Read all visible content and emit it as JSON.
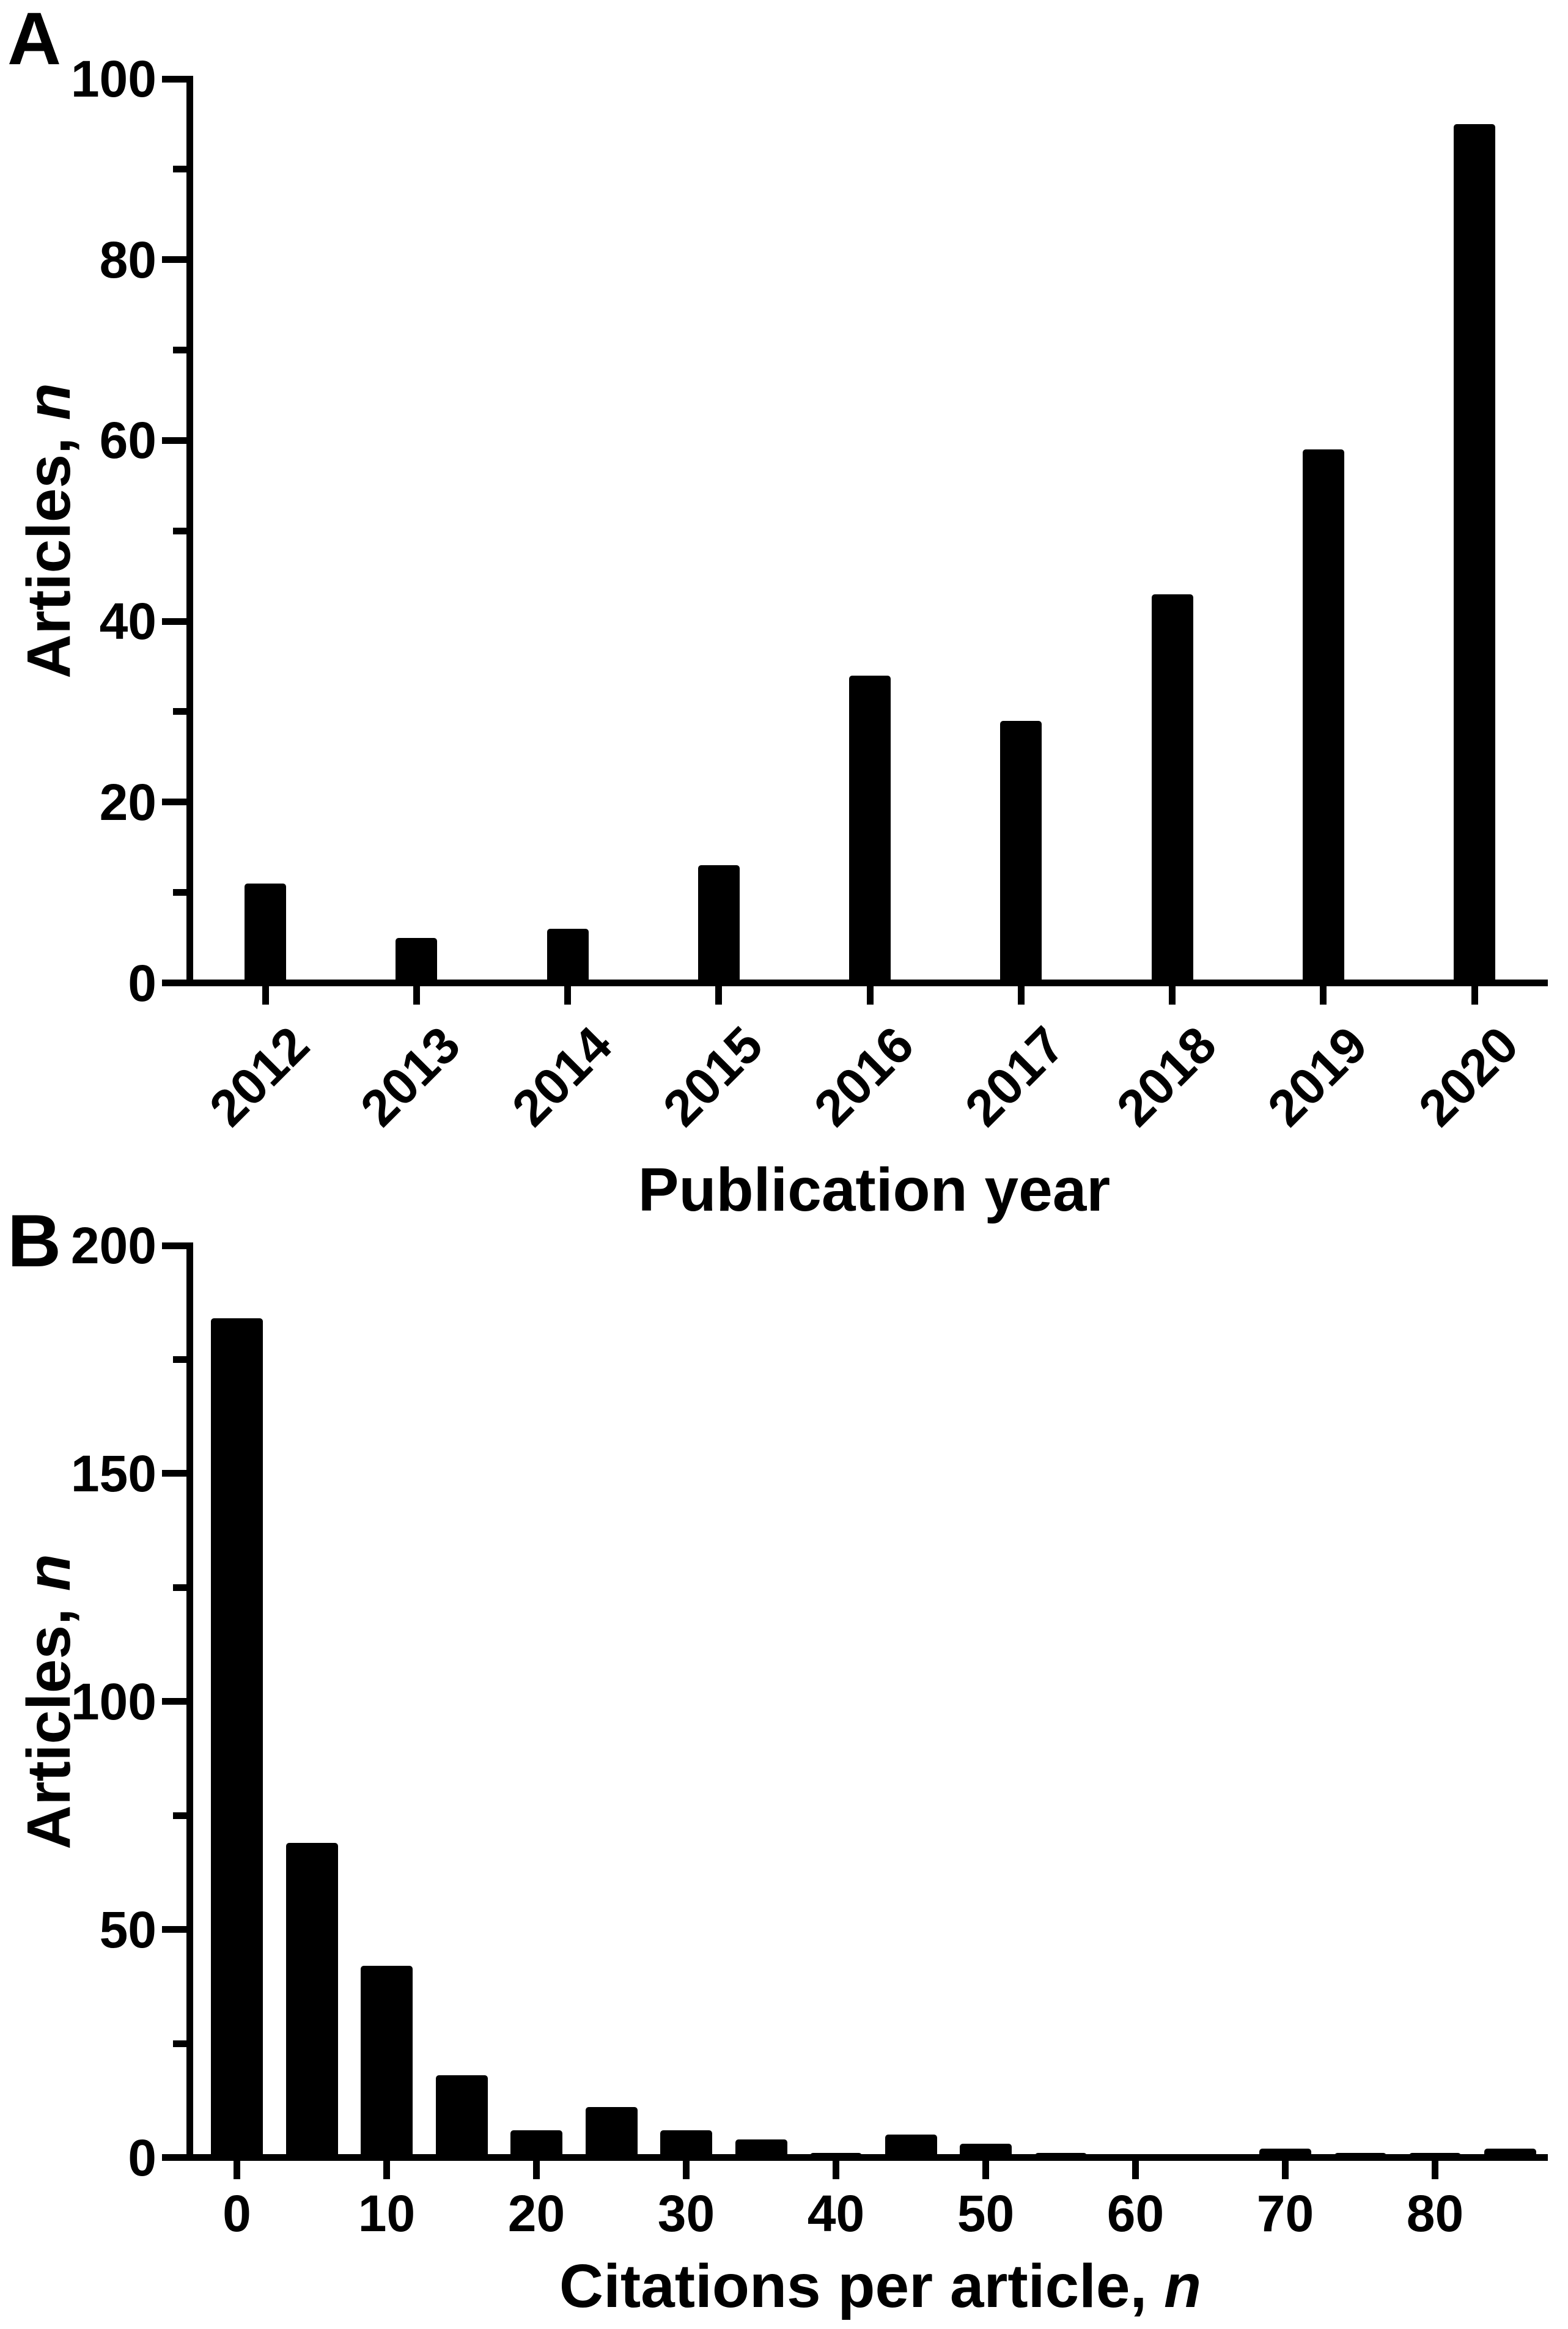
{
  "page": {
    "background_color": "#ffffff",
    "ink_color": "#000000"
  },
  "chart_data": [
    {
      "type": "bar",
      "panel_letter": "A",
      "title": "",
      "categories": [
        "2012",
        "2013",
        "2014",
        "2015",
        "2016",
        "2017",
        "2018",
        "2019",
        "2020"
      ],
      "values": [
        11,
        5,
        6,
        13,
        34,
        29,
        43,
        59,
        95
      ],
      "xlabel": {
        "text": "Publication year",
        "suffix_italic": ""
      },
      "ylabel": {
        "text": "Articles, ",
        "suffix_italic": "n"
      },
      "ylim": [
        0,
        100
      ],
      "y_major_ticks": [
        0,
        20,
        40,
        60,
        80,
        100
      ],
      "y_minor_ticks": [
        10,
        30,
        50,
        70,
        90
      ],
      "x_tick_label_rotation_deg": -45,
      "grid": "off",
      "legend": "none",
      "bar_color": "#000000"
    },
    {
      "type": "bar",
      "panel_letter": "B",
      "title": "",
      "x": [
        0,
        5,
        10,
        15,
        20,
        25,
        30,
        35,
        40,
        45,
        50,
        55,
        60,
        65,
        70,
        75,
        80,
        85
      ],
      "values": [
        184,
        69,
        42,
        18,
        6,
        11,
        6,
        4,
        1,
        5,
        3,
        1,
        0,
        0,
        2,
        1,
        1,
        2
      ],
      "x_major_tick_labels": [
        0,
        10,
        20,
        30,
        40,
        50,
        60,
        70,
        80
      ],
      "xlabel": {
        "text": "Citations per article, ",
        "suffix_italic": "n"
      },
      "ylabel": {
        "text": "Articles, ",
        "suffix_italic": "n"
      },
      "ylim": [
        0,
        200
      ],
      "y_major_ticks": [
        0,
        50,
        100,
        150,
        200
      ],
      "y_minor_ticks": [
        25,
        75,
        125,
        175
      ],
      "x_tick_label_rotation_deg": 0,
      "grid": "off",
      "legend": "none",
      "bar_color": "#000000"
    }
  ]
}
